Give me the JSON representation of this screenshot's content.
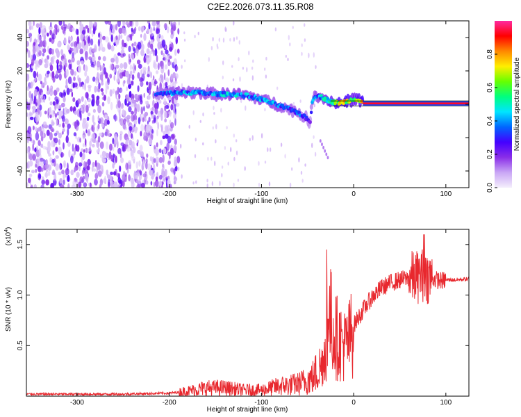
{
  "title": "C2E2.2026.073.11.35.R08",
  "chart_data": [
    {
      "type": "heatmap",
      "xlabel": "Height of straight line (km)",
      "ylabel": "Frequency (Hz)",
      "xlim": [
        -355,
        125
      ],
      "ylim": [
        -50,
        50
      ],
      "xticks": [
        -300,
        -200,
        -100,
        0,
        100
      ],
      "yticks": [
        -40,
        -20,
        0,
        20,
        40
      ],
      "colorbar": {
        "label": "Normalized spectral amplitude",
        "range": [
          0,
          1
        ],
        "ticks": [
          0.0,
          0.2,
          0.4,
          0.6,
          0.8
        ],
        "colors": [
          "#f4eefc",
          "#c9a6f5",
          "#8a2ee8",
          "#4400ff",
          "#0066ff",
          "#00e5ff",
          "#00ff7f",
          "#66ff00",
          "#ffee00",
          "#ff8800",
          "#ff0000",
          "#ff2aa0"
        ]
      },
      "ridge": {
        "x": [
          -215,
          -190,
          -170,
          -150,
          -130,
          -115,
          -100,
          -90,
          -80,
          -70,
          -60,
          -50,
          -47,
          -45,
          -42,
          -38,
          -34,
          -30,
          -26,
          -22,
          -18,
          -12,
          -6,
          0,
          5,
          10,
          20,
          40,
          60,
          80,
          100,
          125
        ],
        "y": [
          6,
          7,
          7,
          6,
          6,
          5,
          3,
          1,
          -1,
          -3,
          -5,
          -9,
          -11,
          2,
          5,
          5,
          4,
          3,
          2,
          1,
          1,
          1,
          2,
          3,
          3,
          1,
          0.5,
          0.5,
          0.5,
          0.5,
          0.5,
          0.5
        ],
        "amplitude": [
          0.35,
          0.45,
          0.45,
          0.45,
          0.5,
          0.45,
          0.45,
          0.45,
          0.45,
          0.4,
          0.4,
          0.35,
          0.3,
          0.4,
          0.45,
          0.45,
          0.5,
          0.55,
          0.6,
          0.7,
          0.75,
          0.8,
          0.75,
          0.6,
          0.7,
          0.8,
          0.9,
          0.95,
          0.95,
          0.95,
          0.95,
          0.95
        ]
      },
      "noise_region_x": [
        -355,
        -190
      ]
    },
    {
      "type": "line",
      "xlabel": "Height of straight line (km)",
      "ylabel": "SNR (10 * v/v)",
      "yscale_label": "(x10",
      "yscale_exp": "4",
      "yscale_close": ")",
      "xlim": [
        -355,
        125
      ],
      "ylim": [
        0,
        1.65
      ],
      "xticks": [
        -300,
        -200,
        -100,
        0,
        100
      ],
      "yticks": [
        0.5,
        1.0,
        1.5
      ],
      "color": "#e8282e",
      "series": [
        {
          "x": [
            -355,
            -300,
            -250,
            -200,
            -180,
            -160,
            -140,
            -120,
            -100,
            -80,
            -60,
            -45,
            -35,
            -30,
            -28,
            -25,
            -22,
            -20,
            -15,
            -10,
            -5,
            0,
            10,
            20,
            30,
            40,
            50,
            60,
            70,
            75,
            80,
            90,
            95,
            100,
            110,
            125
          ],
          "y": [
            0.02,
            0.02,
            0.02,
            0.03,
            0.05,
            0.08,
            0.08,
            0.06,
            0.06,
            0.1,
            0.12,
            0.18,
            0.3,
            0.5,
            0.7,
            0.75,
            0.65,
            0.6,
            0.55,
            0.5,
            0.55,
            0.7,
            0.85,
            0.98,
            1.07,
            1.12,
            1.15,
            1.17,
            1.18,
            1.2,
            1.18,
            1.15,
            1.14,
            1.15,
            1.15,
            1.16
          ]
        }
      ]
    }
  ]
}
